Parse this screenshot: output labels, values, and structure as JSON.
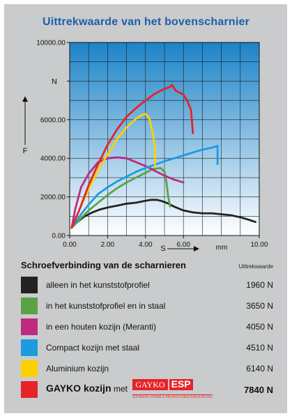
{
  "colors": {
    "plot_top": "#1c83c8",
    "plot_bottom": "#ffffff",
    "title": "#1e5fa8"
  },
  "chart_data": {
    "type": "line",
    "title": "Uittrekwaarde van het bovenscharnier",
    "xlabel": "S",
    "x_unit": "mm",
    "ylabel": "F",
    "y_unit": "N",
    "xlim": [
      0,
      10
    ],
    "ylim": [
      0,
      10000
    ],
    "x_ticks": [
      "0.00",
      "2.00",
      "4.00",
      "6.00",
      "10.00"
    ],
    "y_ticks": [
      "0.00",
      "2000.00",
      "4000.00",
      "6000.00",
      "10000.00"
    ],
    "series": [
      {
        "name": "alleen in het kunststofprofiel",
        "color": "#222222",
        "points": [
          [
            0.1,
            400
          ],
          [
            0.4,
            700
          ],
          [
            0.8,
            1000
          ],
          [
            1.2,
            1200
          ],
          [
            1.6,
            1350
          ],
          [
            2.0,
            1450
          ],
          [
            2.5,
            1550
          ],
          [
            3.0,
            1650
          ],
          [
            3.5,
            1700
          ],
          [
            4.0,
            1800
          ],
          [
            4.3,
            1850
          ],
          [
            4.6,
            1850
          ],
          [
            4.8,
            1800
          ],
          [
            5.1,
            1700
          ],
          [
            5.5,
            1500
          ],
          [
            6.0,
            1300
          ],
          [
            6.5,
            1200
          ],
          [
            7.0,
            1150
          ],
          [
            7.5,
            1150
          ],
          [
            8.0,
            1100
          ],
          [
            8.5,
            1050
          ],
          [
            9.0,
            950
          ],
          [
            9.5,
            800
          ],
          [
            9.8,
            700
          ]
        ]
      },
      {
        "name": "in het kunststofprofiel en in staal",
        "color": "#5aa246",
        "points": [
          [
            0.1,
            400
          ],
          [
            0.6,
            900
          ],
          [
            1.0,
            1300
          ],
          [
            1.5,
            1700
          ],
          [
            2.0,
            2100
          ],
          [
            2.5,
            2450
          ],
          [
            3.0,
            2750
          ],
          [
            3.5,
            3000
          ],
          [
            4.0,
            3250
          ],
          [
            4.4,
            3450
          ],
          [
            4.8,
            3500
          ],
          [
            5.0,
            3300
          ],
          [
            5.1,
            2800
          ],
          [
            5.2,
            2000
          ],
          [
            5.3,
            1500
          ]
        ]
      },
      {
        "name": "in een houten kozijn (Meranti)",
        "color": "#be2a80",
        "points": [
          [
            0.1,
            400
          ],
          [
            0.3,
            1400
          ],
          [
            0.6,
            2500
          ],
          [
            1.0,
            3200
          ],
          [
            1.5,
            3800
          ],
          [
            2.0,
            4000
          ],
          [
            2.5,
            4050
          ],
          [
            3.0,
            4000
          ],
          [
            3.5,
            3800
          ],
          [
            4.0,
            3600
          ],
          [
            4.5,
            3350
          ],
          [
            5.0,
            3100
          ],
          [
            5.5,
            2900
          ],
          [
            6.0,
            2750
          ]
        ]
      },
      {
        "name": "Compact kozijn met staal",
        "color": "#1c9be0",
        "points": [
          [
            0.1,
            400
          ],
          [
            0.6,
            1100
          ],
          [
            1.0,
            1600
          ],
          [
            1.5,
            2150
          ],
          [
            2.0,
            2500
          ],
          [
            2.5,
            2800
          ],
          [
            3.0,
            3050
          ],
          [
            3.5,
            3300
          ],
          [
            4.0,
            3500
          ],
          [
            5.0,
            3850
          ],
          [
            6.0,
            4150
          ],
          [
            7.0,
            4450
          ],
          [
            7.5,
            4550
          ],
          [
            7.8,
            4650
          ],
          [
            7.8,
            4300
          ],
          [
            7.8,
            3700
          ]
        ]
      },
      {
        "name": "Aluminium kozijn",
        "color": "#ffd000",
        "points": [
          [
            0.1,
            400
          ],
          [
            0.5,
            1300
          ],
          [
            1.0,
            2400
          ],
          [
            1.5,
            3400
          ],
          [
            2.0,
            4200
          ],
          [
            2.5,
            5000
          ],
          [
            3.0,
            5600
          ],
          [
            3.5,
            6050
          ],
          [
            3.8,
            6250
          ],
          [
            4.0,
            6300
          ],
          [
            4.2,
            6100
          ],
          [
            4.4,
            5200
          ],
          [
            4.5,
            4500
          ],
          [
            4.5,
            3600
          ]
        ]
      },
      {
        "name": "GAYKO kozijn met",
        "color": "#e52329",
        "points": [
          [
            0.1,
            400
          ],
          [
            0.5,
            1300
          ],
          [
            1.0,
            2600
          ],
          [
            1.5,
            3700
          ],
          [
            2.0,
            4700
          ],
          [
            2.5,
            5500
          ],
          [
            3.0,
            6150
          ],
          [
            3.5,
            6600
          ],
          [
            4.0,
            7000
          ],
          [
            4.5,
            7350
          ],
          [
            5.0,
            7600
          ],
          [
            5.3,
            7700
          ],
          [
            5.4,
            7800
          ],
          [
            5.6,
            7500
          ],
          [
            6.0,
            7300
          ],
          [
            6.2,
            7000
          ],
          [
            6.4,
            6500
          ],
          [
            6.5,
            5300
          ]
        ]
      }
    ]
  },
  "legend": {
    "title": "Schroefverbinding van de scharnieren",
    "column_label": "Uittrekwaarde",
    "items": [
      {
        "label": "alleen in het kunststofprofiel",
        "value": "1960 N",
        "color": "#222222"
      },
      {
        "label": "in het kunststofprofiel en in staal",
        "value": "3650 N",
        "color": "#5aa246"
      },
      {
        "label": "in een houten kozijn (Meranti)",
        "value": "4050 N",
        "color": "#be2a80"
      },
      {
        "label": "Compact kozijn met staal",
        "value": "4510 N",
        "color": "#1c9be0"
      },
      {
        "label": "Aluminium kozijn",
        "value": "6140 N",
        "color": "#ffd000"
      }
    ],
    "last": {
      "brand": "GAYKO kozijn",
      "suffix": "met",
      "logo_word": "GAYKO",
      "logo_esp": "ESP",
      "logo_sub": "EXTREM STABILE PROFILVERSCHRAUBUNG",
      "value": "7840 N",
      "color": "#e52329"
    }
  }
}
